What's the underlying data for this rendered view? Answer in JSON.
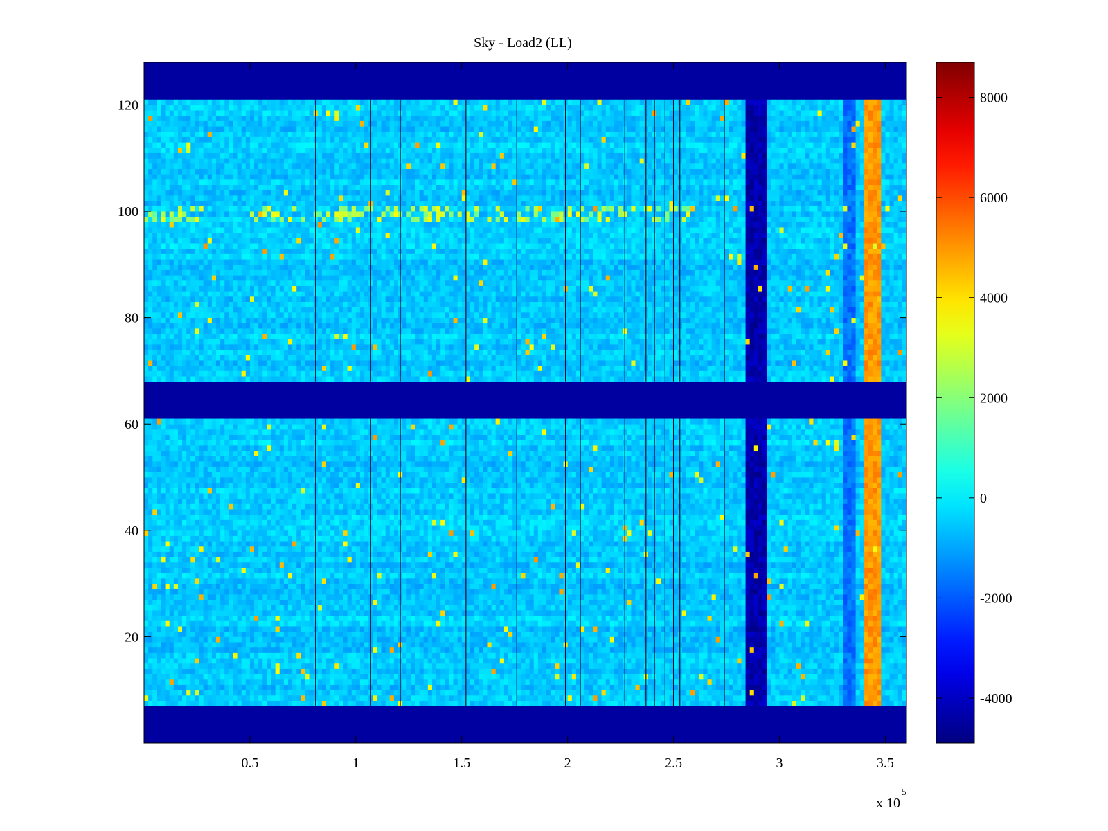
{
  "chart_data": {
    "type": "heatmap",
    "title": "Sky - Load2 (LL)",
    "xlabel": "",
    "ylabel": "",
    "x_range": [
      0,
      360000
    ],
    "y_range": [
      0,
      128
    ],
    "x_ticks": [
      50000,
      100000,
      150000,
      200000,
      250000,
      300000,
      350000
    ],
    "x_tick_labels": [
      "0.5",
      "1",
      "1.5",
      "2",
      "2.5",
      "3",
      "3.5"
    ],
    "x_multiplier_label": "x 10",
    "x_multiplier_exponent": "5",
    "y_ticks": [
      20,
      40,
      60,
      80,
      100,
      120
    ],
    "y_tick_labels": [
      "20",
      "40",
      "60",
      "80",
      "100",
      "120"
    ],
    "colorbar": {
      "colormap": "jet",
      "range": [
        -4900,
        8700
      ],
      "ticks": [
        -4000,
        -2000,
        0,
        2000,
        4000,
        6000,
        8000
      ],
      "tick_labels": [
        "-4000",
        "-2000",
        "0",
        "2000",
        "4000",
        "6000",
        "8000"
      ]
    },
    "baseline_value": -500,
    "masked_value": -4900,
    "masked_y_bands": [
      [
        0,
        7
      ],
      [
        61,
        68
      ],
      [
        121,
        128
      ]
    ],
    "features": [
      {
        "name": "low-band",
        "x_range": [
          284000,
          295000
        ],
        "value": -4300
      },
      {
        "name": "high-band",
        "x_range": [
          341000,
          348000
        ],
        "value": 5000
      },
      {
        "name": "moderate-stripe",
        "x_range": [
          331000,
          336000
        ],
        "value": -1700
      },
      {
        "name": "row-feature-100",
        "y_range": [
          98,
          101
        ],
        "value": 2500
      }
    ],
    "dark_lines_x": [
      81000,
      107000,
      121000,
      152000,
      176000,
      199000,
      206000,
      227000,
      237000,
      241000,
      246000,
      250000,
      253000,
      274000
    ]
  }
}
